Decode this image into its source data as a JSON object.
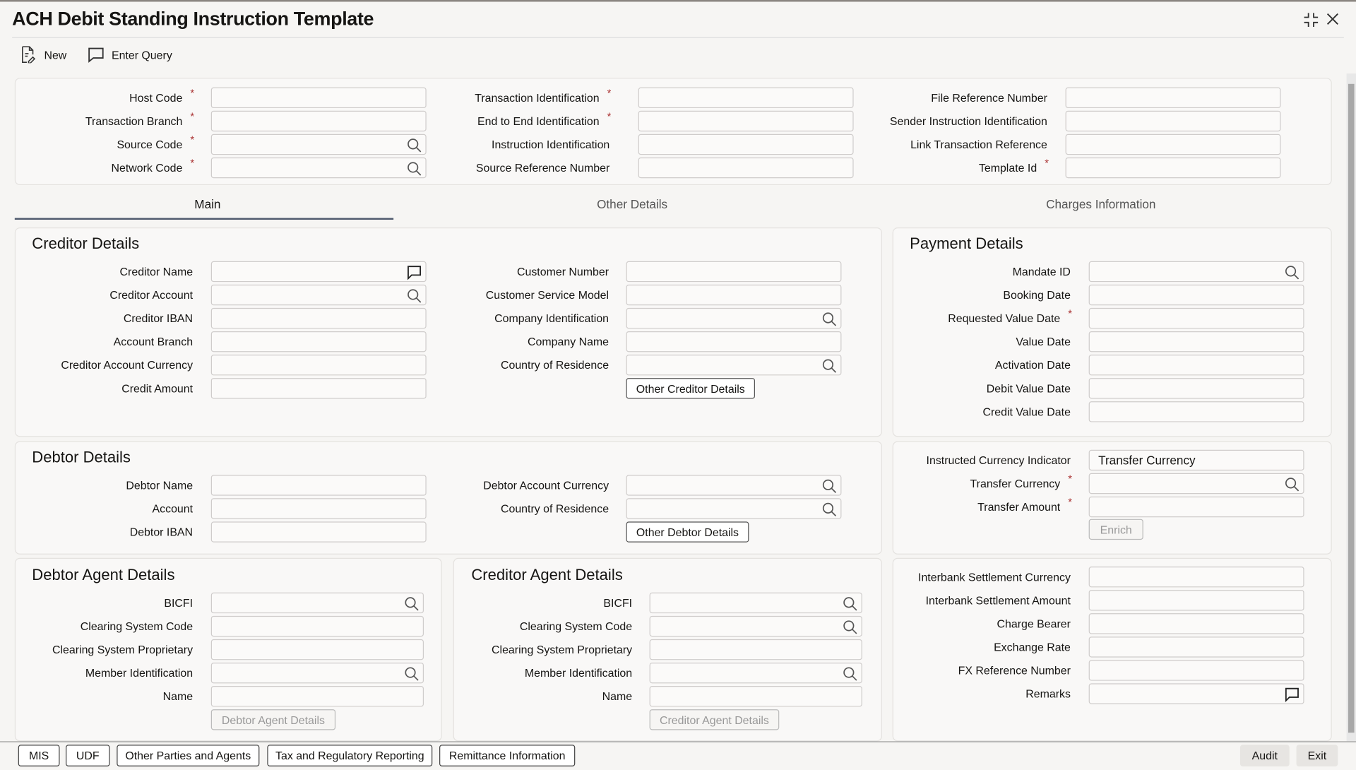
{
  "window": {
    "title": "ACH Debit Standing Instruction Template",
    "icons": [
      "collapse-icon",
      "close-icon"
    ]
  },
  "toolbar": {
    "new_label": "New",
    "enter_query_label": "Enter Query"
  },
  "header": {
    "fields": [
      {
        "label": "Host Code",
        "required": true,
        "value": "",
        "icon": ""
      },
      {
        "label": "Transaction Branch",
        "required": true,
        "value": "",
        "icon": ""
      },
      {
        "label": "Source Code",
        "required": true,
        "value": "",
        "icon": "search"
      },
      {
        "label": "Network Code",
        "required": true,
        "value": "",
        "icon": "search"
      },
      {
        "label": "Transaction Identification",
        "required": true,
        "value": "",
        "icon": ""
      },
      {
        "label": "End to End Identification",
        "required": true,
        "value": "",
        "icon": ""
      },
      {
        "label": "Instruction Identification",
        "required": false,
        "value": "",
        "icon": ""
      },
      {
        "label": "Source Reference Number",
        "required": false,
        "value": "",
        "icon": ""
      },
      {
        "label": "File Reference Number",
        "required": false,
        "value": "",
        "icon": ""
      },
      {
        "label": "Sender Instruction Identification",
        "required": false,
        "value": "",
        "icon": ""
      },
      {
        "label": "Link Transaction Reference",
        "required": false,
        "value": "",
        "icon": ""
      },
      {
        "label": "Template Id",
        "required": true,
        "value": "",
        "icon": ""
      }
    ]
  },
  "tabs": [
    {
      "label": "Main",
      "active": true
    },
    {
      "label": "Other Details",
      "active": false
    },
    {
      "label": "Charges Information",
      "active": false
    }
  ],
  "creditor": {
    "title": "Creditor Details",
    "fields": [
      {
        "label": "Creditor Name",
        "required": false,
        "value": "",
        "icon": "comment"
      },
      {
        "label": "Creditor Account",
        "required": false,
        "value": "",
        "icon": "search"
      },
      {
        "label": "Creditor IBAN",
        "required": false,
        "value": "",
        "icon": ""
      },
      {
        "label": "Account Branch",
        "required": false,
        "value": "",
        "icon": ""
      },
      {
        "label": "Creditor Account Currency",
        "required": false,
        "value": "",
        "icon": ""
      },
      {
        "label": "Credit Amount",
        "required": false,
        "value": "",
        "icon": ""
      },
      {
        "label": "Customer Number",
        "required": false,
        "value": "",
        "icon": ""
      },
      {
        "label": "Customer Service Model",
        "required": false,
        "value": "",
        "icon": ""
      },
      {
        "label": "Company Identification",
        "required": false,
        "value": "",
        "icon": "search"
      },
      {
        "label": "Company Name",
        "required": false,
        "value": "",
        "icon": ""
      },
      {
        "label": "Country of Residence",
        "required": false,
        "value": "",
        "icon": "search"
      }
    ],
    "button": "Other Creditor Details"
  },
  "payment": {
    "title": "Payment Details",
    "fields": [
      {
        "label": "Mandate ID",
        "required": false,
        "value": "",
        "icon": "search"
      },
      {
        "label": "Booking Date",
        "required": false,
        "value": "",
        "icon": ""
      },
      {
        "label": "Requested Value Date",
        "required": true,
        "value": "",
        "icon": ""
      },
      {
        "label": "Value Date",
        "required": false,
        "value": "",
        "icon": ""
      },
      {
        "label": "Activation Date",
        "required": false,
        "value": "",
        "icon": ""
      },
      {
        "label": "Debit Value Date",
        "required": false,
        "value": "",
        "icon": ""
      },
      {
        "label": "Credit Value Date",
        "required": false,
        "value": "",
        "icon": ""
      }
    ]
  },
  "debtor": {
    "title": "Debtor Details",
    "fields": [
      {
        "label": "Debtor Name",
        "required": false,
        "value": "",
        "icon": ""
      },
      {
        "label": "Account",
        "required": false,
        "value": "",
        "icon": ""
      },
      {
        "label": "Debtor IBAN",
        "required": false,
        "value": "",
        "icon": ""
      },
      {
        "label": "Debtor Account Currency",
        "required": false,
        "value": "",
        "icon": "search"
      },
      {
        "label": "Country of Residence",
        "required": false,
        "value": "",
        "icon": "search"
      }
    ],
    "button": "Other Debtor Details"
  },
  "currency": {
    "fields": [
      {
        "label": "Instructed Currency Indicator",
        "required": false,
        "value": "Transfer Currency",
        "icon": ""
      },
      {
        "label": "Transfer Currency",
        "required": true,
        "value": "",
        "icon": "search"
      },
      {
        "label": "Transfer Amount",
        "required": true,
        "value": "",
        "icon": ""
      }
    ],
    "button": "Enrich"
  },
  "debtor_agent": {
    "title": "Debtor Agent Details",
    "fields": [
      {
        "label": "BICFI",
        "required": false,
        "value": "",
        "icon": "search"
      },
      {
        "label": "Clearing System Code",
        "required": false,
        "value": "",
        "icon": ""
      },
      {
        "label": "Clearing System Proprietary",
        "required": false,
        "value": "",
        "icon": ""
      },
      {
        "label": "Member Identification",
        "required": false,
        "value": "",
        "icon": "search"
      },
      {
        "label": "Name",
        "required": false,
        "value": "",
        "icon": ""
      }
    ],
    "button": "Debtor Agent Details"
  },
  "creditor_agent": {
    "title": "Creditor Agent Details",
    "fields": [
      {
        "label": "BICFI",
        "required": false,
        "value": "",
        "icon": "search"
      },
      {
        "label": "Clearing System Code",
        "required": false,
        "value": "",
        "icon": "search"
      },
      {
        "label": "Clearing System Proprietary",
        "required": false,
        "value": "",
        "icon": ""
      },
      {
        "label": "Member Identification",
        "required": false,
        "value": "",
        "icon": "search"
      },
      {
        "label": "Name",
        "required": false,
        "value": "",
        "icon": ""
      }
    ],
    "button": "Creditor Agent Details"
  },
  "settlement": {
    "fields": [
      {
        "label": "Interbank Settlement Currency",
        "required": false,
        "value": "",
        "icon": ""
      },
      {
        "label": "Interbank Settlement Amount",
        "required": false,
        "value": "",
        "icon": ""
      },
      {
        "label": "Charge Bearer",
        "required": false,
        "value": "",
        "icon": ""
      },
      {
        "label": "Exchange Rate",
        "required": false,
        "value": "",
        "icon": ""
      },
      {
        "label": "FX Reference Number",
        "required": false,
        "value": "",
        "icon": ""
      },
      {
        "label": "Remarks",
        "required": false,
        "value": "",
        "icon": "comment"
      }
    ]
  },
  "footer": {
    "buttons": [
      "MIS",
      "UDF",
      "Other Parties and Agents",
      "Tax and Regulatory Reporting",
      "Remittance Information"
    ],
    "audit": "Audit",
    "exit": "Exit"
  }
}
